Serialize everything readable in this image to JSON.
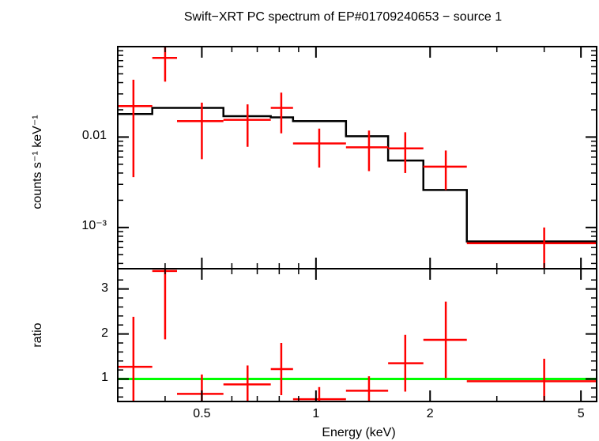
{
  "chart_data": [
    {
      "type": "line",
      "panel": "spectrum",
      "title": "Swift−XRT PC spectrum of EP#01709240653 − source 1",
      "ylabel": "counts s⁻¹ keV⁻¹",
      "xlabel": "Energy (keV)",
      "xscale": "log",
      "yscale": "log",
      "xlim": [
        0.3,
        5.5
      ],
      "ylim": [
        0.00035,
        0.1
      ],
      "ytick_labels": [
        {
          "value": 0.01,
          "label": "0.01"
        },
        {
          "value": 0.001,
          "label": "10⁻³"
        }
      ],
      "series": [
        {
          "kind": "errorbar",
          "color": "#ff0000",
          "points": [
            {
              "x": 0.33,
              "xlo": 0.3,
              "xhi": 0.37,
              "y": 0.022,
              "ylo": 0.0036,
              "yhi": 0.043
            },
            {
              "x": 0.4,
              "xlo": 0.37,
              "xhi": 0.43,
              "y": 0.075,
              "ylo": 0.041,
              "yhi": 0.1
            },
            {
              "x": 0.5,
              "xlo": 0.43,
              "xhi": 0.57,
              "y": 0.015,
              "ylo": 0.0057,
              "yhi": 0.024
            },
            {
              "x": 0.66,
              "xlo": 0.57,
              "xhi": 0.76,
              "y": 0.0155,
              "ylo": 0.0078,
              "yhi": 0.023
            },
            {
              "x": 0.81,
              "xlo": 0.76,
              "xhi": 0.87,
              "y": 0.021,
              "ylo": 0.011,
              "yhi": 0.031
            },
            {
              "x": 1.02,
              "xlo": 0.87,
              "xhi": 1.2,
              "y": 0.0085,
              "ylo": 0.0046,
              "yhi": 0.0124
            },
            {
              "x": 1.38,
              "xlo": 1.2,
              "xhi": 1.55,
              "y": 0.0077,
              "ylo": 0.0042,
              "yhi": 0.0118
            },
            {
              "x": 1.72,
              "xlo": 1.55,
              "xhi": 1.92,
              "y": 0.0075,
              "ylo": 0.004,
              "yhi": 0.0113
            },
            {
              "x": 2.2,
              "xlo": 1.92,
              "xhi": 2.5,
              "y": 0.0047,
              "ylo": 0.0026,
              "yhi": 0.0071
            },
            {
              "x": 4.0,
              "xlo": 2.5,
              "xhi": 5.5,
              "y": 0.00067,
              "ylo": 0.00035,
              "yhi": 0.001
            }
          ]
        },
        {
          "kind": "step",
          "color": "#000000",
          "edges": [
            0.3,
            0.37,
            0.57,
            0.76,
            0.87,
            1.2,
            1.55,
            1.92,
            2.5,
            5.5
          ],
          "values": [
            0.018,
            0.021,
            0.017,
            0.0165,
            0.015,
            0.0102,
            0.0055,
            0.0026,
            0.0007
          ]
        }
      ]
    },
    {
      "type": "line",
      "panel": "ratio",
      "ylabel": "ratio",
      "xlabel": "Energy (keV)",
      "xscale": "log",
      "yscale": "linear",
      "xlim": [
        0.3,
        5.5
      ],
      "ylim": [
        0.5,
        3.45
      ],
      "xtick_labels": [
        {
          "value": 0.5,
          "label": "0.5"
        },
        {
          "value": 1,
          "label": "1"
        },
        {
          "value": 2,
          "label": "2"
        },
        {
          "value": 5,
          "label": "5"
        }
      ],
      "ytick_labels": [
        {
          "value": 1,
          "label": "1"
        },
        {
          "value": 2,
          "label": "2"
        },
        {
          "value": 3,
          "label": "3"
        }
      ],
      "reference_line": {
        "y": 1,
        "color": "#00ff00"
      },
      "series": [
        {
          "kind": "errorbar",
          "color": "#ff0000",
          "points": [
            {
              "x": 0.33,
              "xlo": 0.3,
              "xhi": 0.37,
              "y": 1.27,
              "ylo": 0.5,
              "yhi": 2.38
            },
            {
              "x": 0.4,
              "xlo": 0.37,
              "xhi": 0.43,
              "y": 3.4,
              "ylo": 1.88,
              "yhi": 3.45
            },
            {
              "x": 0.5,
              "xlo": 0.43,
              "xhi": 0.57,
              "y": 0.67,
              "ylo": 0.5,
              "yhi": 1.1
            },
            {
              "x": 0.66,
              "xlo": 0.57,
              "xhi": 0.76,
              "y": 0.88,
              "ylo": 0.5,
              "yhi": 1.3
            },
            {
              "x": 0.81,
              "xlo": 0.76,
              "xhi": 0.87,
              "y": 1.22,
              "ylo": 0.64,
              "yhi": 1.8
            },
            {
              "x": 1.02,
              "xlo": 0.87,
              "xhi": 1.2,
              "y": 0.55,
              "ylo": 0.5,
              "yhi": 0.82
            },
            {
              "x": 1.38,
              "xlo": 1.2,
              "xhi": 1.55,
              "y": 0.74,
              "ylo": 0.5,
              "yhi": 1.06
            },
            {
              "x": 1.72,
              "xlo": 1.55,
              "xhi": 1.92,
              "y": 1.35,
              "ylo": 0.72,
              "yhi": 1.98
            },
            {
              "x": 2.2,
              "xlo": 1.92,
              "xhi": 2.5,
              "y": 1.87,
              "ylo": 1.02,
              "yhi": 2.72
            },
            {
              "x": 4.0,
              "xlo": 2.5,
              "xhi": 5.5,
              "y": 0.95,
              "ylo": 0.5,
              "yhi": 1.45
            }
          ]
        }
      ]
    }
  ]
}
